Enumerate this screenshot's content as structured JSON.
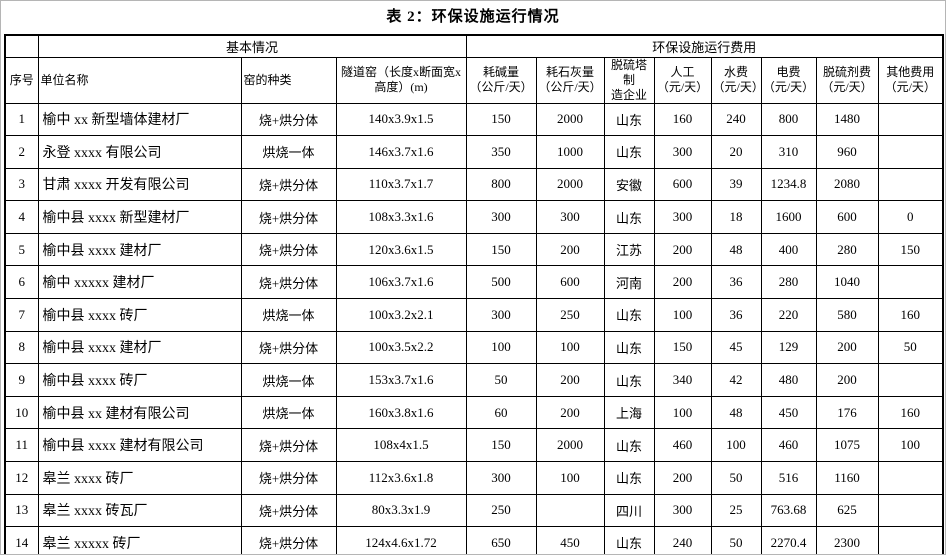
{
  "title": "表 2：环保设施运行情况",
  "table": {
    "group_headers": {
      "corner": "",
      "basic": "基本情况",
      "cost": "环保设施运行费用"
    },
    "columns": [
      "序号",
      "单位名称",
      "窑的种类",
      "隧道窑（长度x断面宽x\n高度）(m)",
      "耗碱量\n（公斤/天）",
      "耗石灰量\n（公斤/天）",
      "脱硫塔制\n造企业",
      "人工\n（元/天）",
      "水费\n（元/天）",
      "电费\n（元/天）",
      "脱硫剂费\n（元/天）",
      "其他费用\n（元/天）"
    ],
    "col_keys": [
      "index",
      "unit-name",
      "kiln-type",
      "tunnel-kiln-size",
      "alkali-consumption",
      "lime-consumption",
      "tower-manufacturer",
      "labor-cost",
      "water-cost",
      "electricity-cost",
      "desulfurizer-cost",
      "other-cost"
    ],
    "rows": [
      [
        "1",
        "榆中 xx 新型墙体建材厂",
        "烧+烘分体",
        "140x3.9x1.5",
        "150",
        "2000",
        "山东",
        "160",
        "240",
        "800",
        "1480",
        ""
      ],
      [
        "2",
        "永登 xxxx 有限公司",
        "烘烧一体",
        "146x3.7x1.6",
        "350",
        "1000",
        "山东",
        "300",
        "20",
        "310",
        "960",
        ""
      ],
      [
        "3",
        "甘肃 xxxx 开发有限公司",
        "烧+烘分体",
        "110x3.7x1.7",
        "800",
        "2000",
        "安徽",
        "600",
        "39",
        "1234.8",
        "2080",
        ""
      ],
      [
        "4",
        "榆中县 xxxx 新型建材厂",
        "烧+烘分体",
        "108x3.3x1.6",
        "300",
        "300",
        "山东",
        "300",
        "18",
        "1600",
        "600",
        "0"
      ],
      [
        "5",
        "榆中县 xxxx 建材厂",
        "烧+烘分体",
        "120x3.6x1.5",
        "150",
        "200",
        "江苏",
        "200",
        "48",
        "400",
        "280",
        "150"
      ],
      [
        "6",
        "榆中 xxxxx 建材厂",
        "烧+烘分体",
        "106x3.7x1.6",
        "500",
        "600",
        "河南",
        "200",
        "36",
        "280",
        "1040",
        ""
      ],
      [
        "7",
        "榆中县 xxxx 砖厂",
        "烘烧一体",
        "100x3.2x2.1",
        "300",
        "250",
        "山东",
        "100",
        "36",
        "220",
        "580",
        "160"
      ],
      [
        "8",
        "榆中县 xxxx 建材厂",
        "烧+烘分体",
        "100x3.5x2.2",
        "100",
        "100",
        "山东",
        "150",
        "45",
        "129",
        "200",
        "50"
      ],
      [
        "9",
        "榆中县 xxxx 砖厂",
        "烘烧一体",
        "153x3.7x1.6",
        "50",
        "200",
        "山东",
        "340",
        "42",
        "480",
        "200",
        ""
      ],
      [
        "10",
        "榆中县 xx 建材有限公司",
        "烘烧一体",
        "160x3.8x1.6",
        "60",
        "200",
        "上海",
        "100",
        "48",
        "450",
        "176",
        "160"
      ],
      [
        "11",
        "榆中县 xxxx 建材有限公司",
        "烧+烘分体",
        "108x4x1.5",
        "150",
        "2000",
        "山东",
        "460",
        "100",
        "460",
        "1075",
        "100"
      ],
      [
        "12",
        "皋兰 xxxx 砖厂",
        "烧+烘分体",
        "112x3.6x1.8",
        "300",
        "100",
        "山东",
        "200",
        "50",
        "516",
        "1160",
        ""
      ],
      [
        "13",
        "皋兰 xxxx 砖瓦厂",
        "烧+烘分体",
        "80x3.3x1.9",
        "250",
        "",
        "四川",
        "300",
        "25",
        "763.68",
        "625",
        ""
      ],
      [
        "14",
        "皋兰 xxxxx 砖厂",
        "烧+烘分体",
        "124x4.6x1.72",
        "650",
        "450",
        "山东",
        "240",
        "50",
        "2270.4",
        "2300",
        ""
      ]
    ]
  }
}
